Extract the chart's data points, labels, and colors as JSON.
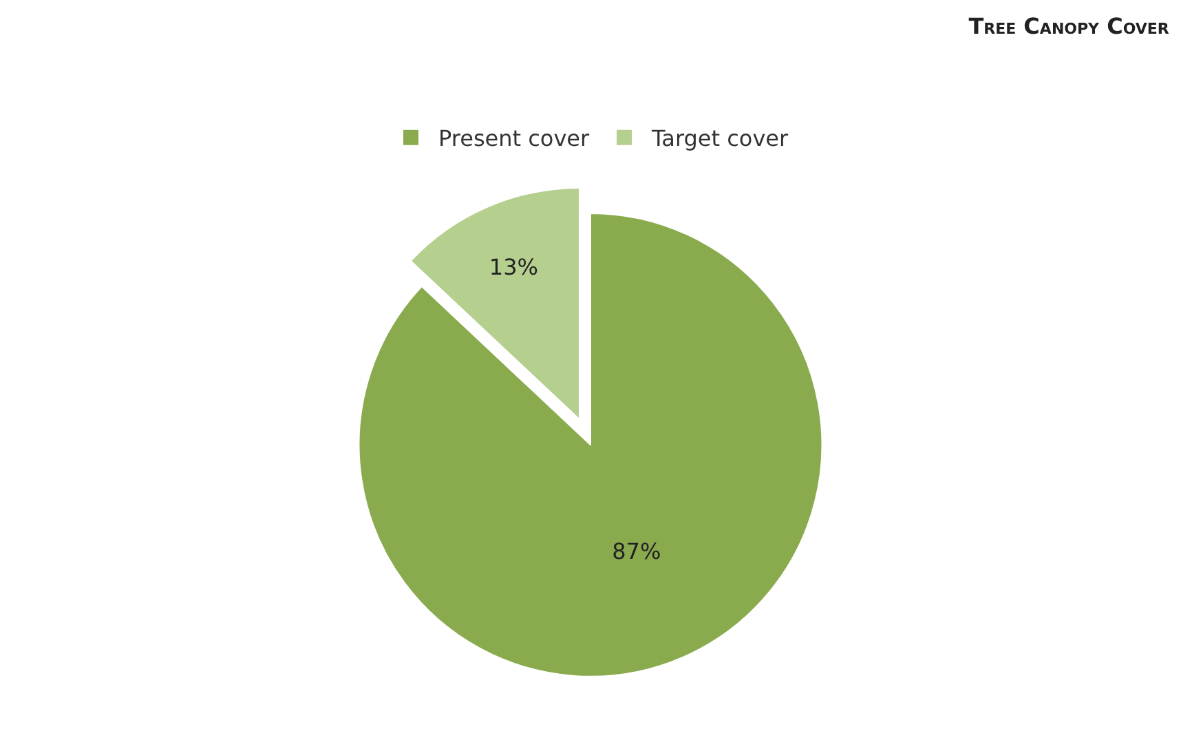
{
  "chart_data": {
    "type": "pie",
    "title": "Tree Canopy Cover",
    "categories": [
      "Present cover",
      "Target cover"
    ],
    "values": [
      87,
      13
    ],
    "colors": [
      "#8aaa4e",
      "#b5cf8e"
    ],
    "value_labels": [
      "87%",
      "13%"
    ],
    "legend": "top"
  }
}
